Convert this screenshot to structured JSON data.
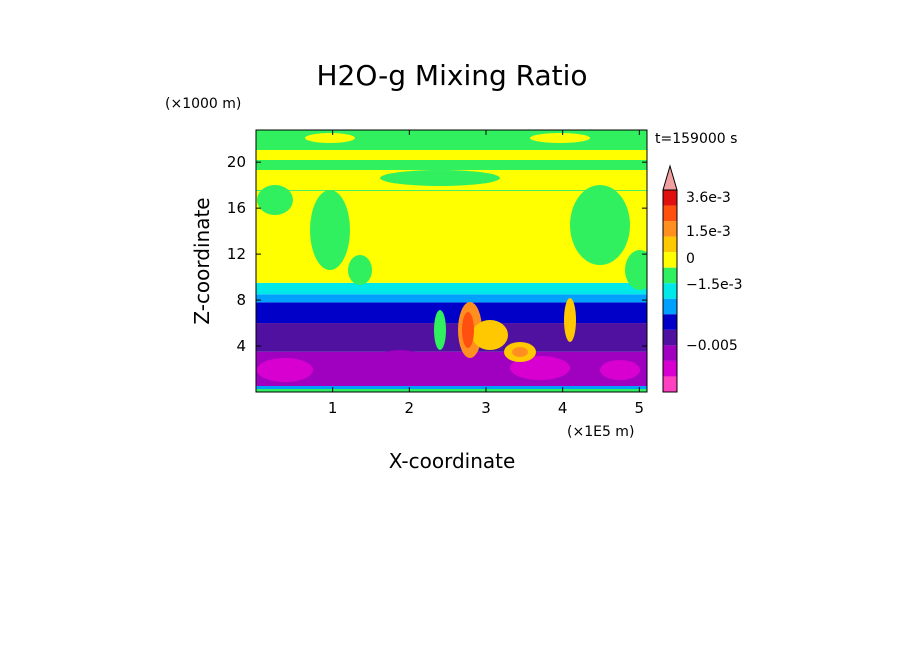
{
  "chart_data": {
    "type": "heatmap",
    "title": "H2O-g Mixing Ratio",
    "xlabel": "X-coordinate",
    "ylabel": "Z-coordinate",
    "x_scale_label": "(×1E5 m)",
    "y_scale_label": "(×1000 m)",
    "time_label": "t=159000 s",
    "xlim": [
      0,
      5.1
    ],
    "ylim": [
      0,
      22.8
    ],
    "x_ticks": [
      1,
      2,
      3,
      4,
      5
    ],
    "y_ticks": [
      4,
      8,
      12,
      16,
      20
    ],
    "colorbar": {
      "levels": [
        "3.6e-3",
        "1.5e-3",
        "0",
        "−1.5e-3",
        "−0.005"
      ],
      "colors": [
        "#f0a0a0",
        "#e01010",
        "#ff5010",
        "#ff9020",
        "#ffc800",
        "#ffff00",
        "#30f060",
        "#00e8e8",
        "#00a0ff",
        "#0000c8",
        "#5010a0",
        "#a000c0",
        "#d800d0",
        "#ff40c0"
      ]
    },
    "bands": [
      {
        "name": "surface",
        "z": [
          0,
          0.5
        ],
        "color": "#30f060"
      },
      {
        "name": "lower-purple",
        "z": [
          0.5,
          3.5
        ],
        "color": "#a000c0"
      },
      {
        "name": "mid-purple",
        "z": [
          3.5,
          6
        ],
        "color": "#5010a0"
      },
      {
        "name": "blue",
        "z": [
          6,
          7.8
        ],
        "color": "#0000c8"
      },
      {
        "name": "light-blue",
        "z": [
          7.8,
          8.5
        ],
        "color": "#00a0ff"
      },
      {
        "name": "cyan",
        "z": [
          8.5,
          9.5
        ],
        "color": "#00e8e8"
      },
      {
        "name": "upper-yellow",
        "z": [
          9.5,
          17.5
        ],
        "color": "#ffff00"
      },
      {
        "name": "top-green",
        "z": [
          17.5,
          22.8
        ],
        "color": "#30f060"
      }
    ]
  }
}
